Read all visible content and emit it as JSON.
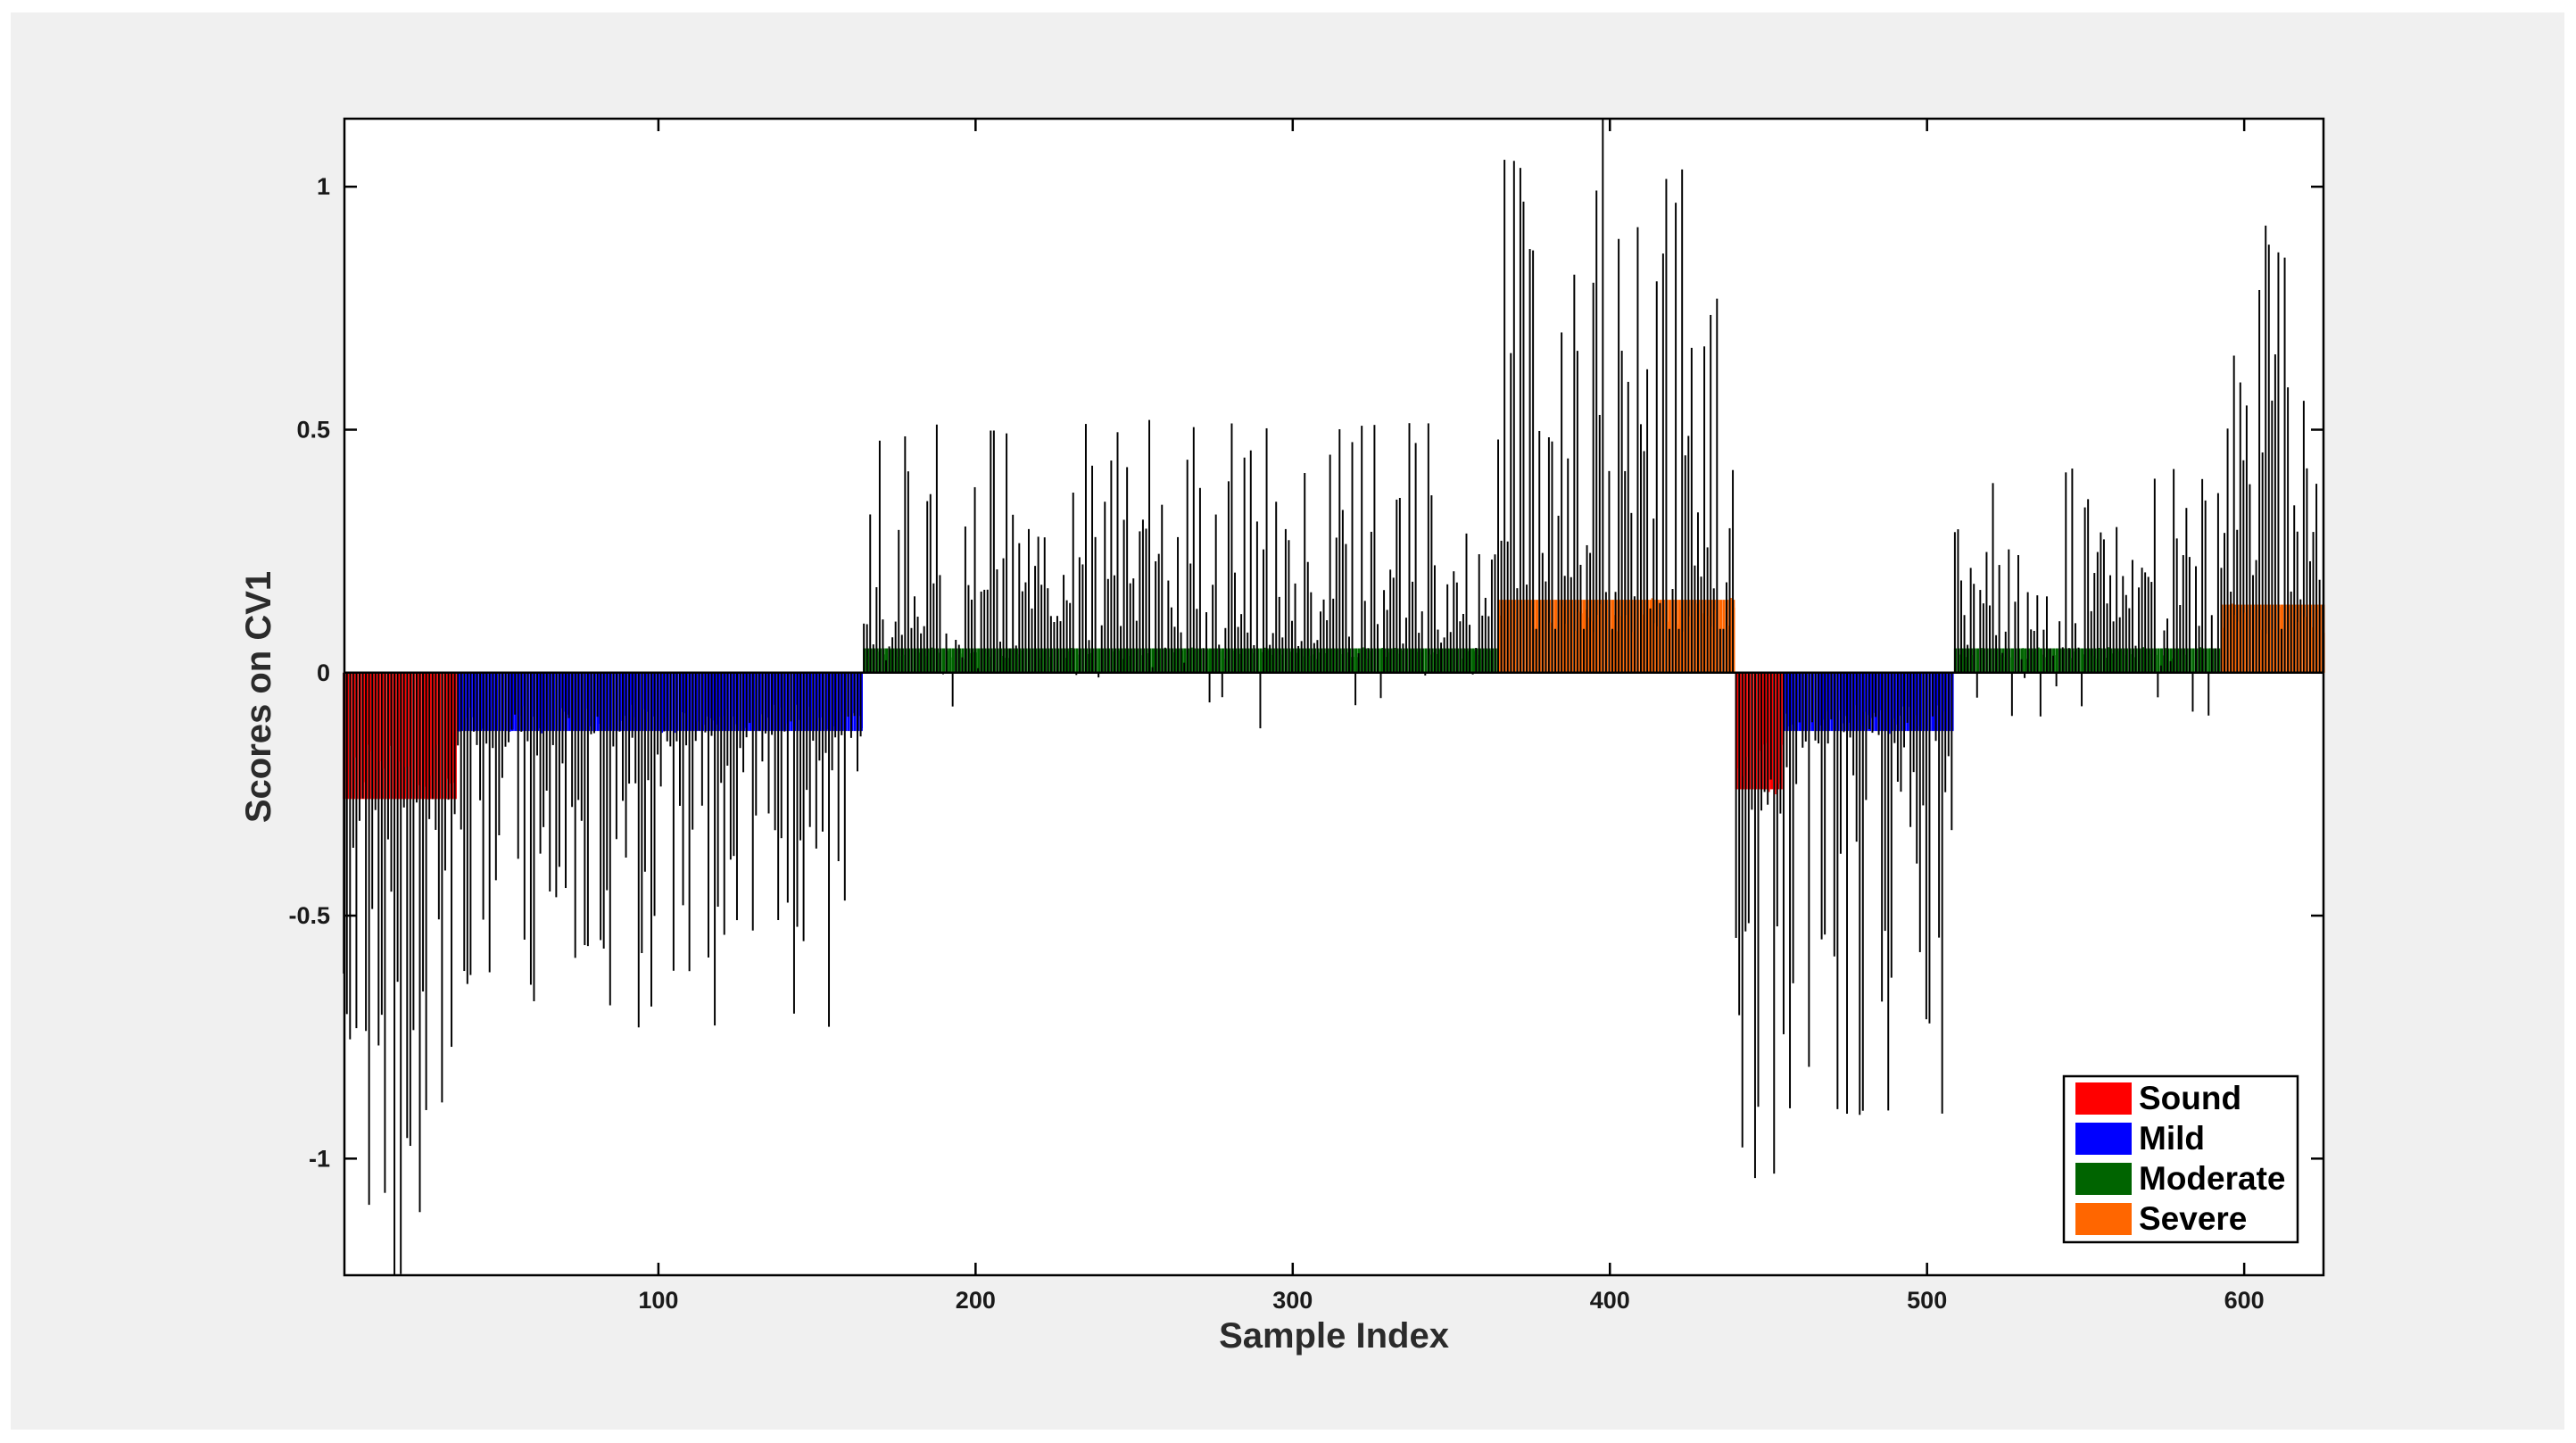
{
  "chart_data": {
    "type": "bar",
    "title": "",
    "xlabel": "Sample Index",
    "ylabel": "Scores on CV1",
    "xlim": [
      1,
      625
    ],
    "ylim": [
      -1.24,
      1.14
    ],
    "xticks": [
      100,
      200,
      300,
      400,
      500,
      600
    ],
    "yticks": [
      1,
      0.5,
      0,
      -0.5,
      -1
    ],
    "grid": false,
    "legend_position": "bottom-right",
    "bar_edge_color": "#000000",
    "segments": [
      {
        "class": "Sound",
        "x_start": 1,
        "x_end": 36,
        "class_mean": -0.26,
        "score_min": -1.24,
        "score_max": -0.19
      },
      {
        "class": "Mild",
        "x_start": 37,
        "x_end": 164,
        "class_mean": -0.12,
        "score_min": -0.73,
        "score_max": 0.01
      },
      {
        "class": "Moderate",
        "x_start": 165,
        "x_end": 364,
        "class_mean": 0.05,
        "score_min": -0.23,
        "score_max": 0.52
      },
      {
        "class": "Severe",
        "x_start": 365,
        "x_end": 439,
        "class_mean": 0.15,
        "score_min": 0.09,
        "score_max": 1.14
      },
      {
        "class": "Sound",
        "x_start": 440,
        "x_end": 454,
        "class_mean": -0.24,
        "score_min": -1.04,
        "score_max": -0.22
      },
      {
        "class": "Mild",
        "x_start": 455,
        "x_end": 508,
        "class_mean": -0.12,
        "score_min": -0.91,
        "score_max": 0.01
      },
      {
        "class": "Moderate",
        "x_start": 509,
        "x_end": 592,
        "class_mean": 0.05,
        "score_min": -0.27,
        "score_max": 0.42
      },
      {
        "class": "Severe",
        "x_start": 593,
        "x_end": 625,
        "class_mean": 0.14,
        "score_min": 0.09,
        "score_max": 0.92
      }
    ],
    "series": [
      {
        "name": "Sound",
        "color": "#ff0000"
      },
      {
        "name": "Mild",
        "color": "#0000ff"
      },
      {
        "name": "Moderate",
        "color": "#006400"
      },
      {
        "name": "Severe",
        "color": "#ff6600"
      }
    ]
  }
}
